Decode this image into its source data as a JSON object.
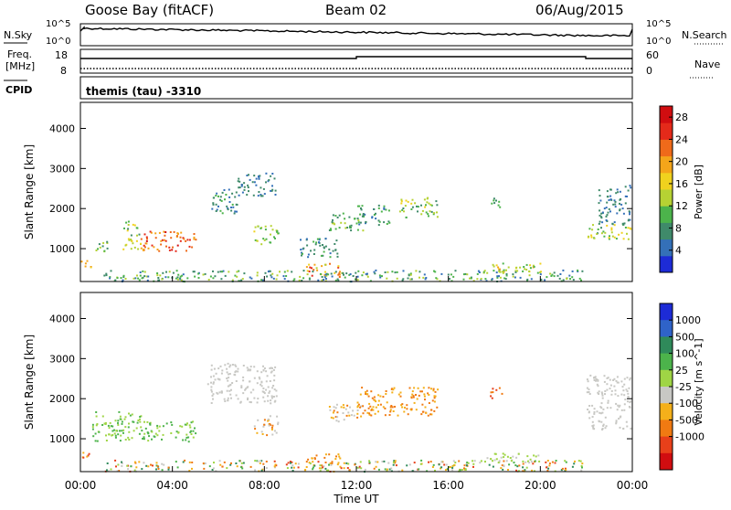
{
  "header": {
    "station": "Goose Bay (fitACF)",
    "beam": "Beam 02",
    "date": "06/Aug/2015"
  },
  "noise_panel": {
    "left_label": "N.Sky",
    "right_label": "N.Search",
    "left_ticks": [
      "10^5",
      "10^0"
    ],
    "right_ticks": [
      "10^5",
      "10^0"
    ]
  },
  "freq_panel": {
    "left_label_line1": "Freq.",
    "left_label_line2": "[MHz]",
    "right_label": "Nave",
    "left_ticks": [
      "18",
      "8"
    ],
    "right_ticks": [
      "60",
      "0"
    ]
  },
  "cpid_panel": {
    "label": "CPID",
    "text": "themis (tau) -3310"
  },
  "chart_data": [
    {
      "type": "scatter",
      "title": "Power",
      "ylabel": "Slant Range [km]",
      "xlabel": "",
      "xlim": [
        0,
        24
      ],
      "ylim": [
        180,
        4650
      ],
      "ytick_values": [
        1000,
        2000,
        3000,
        4000
      ],
      "ytick_labels": [
        "1000",
        "2000",
        "3000",
        "4000"
      ],
      "colorbar": {
        "label": "Power [dB]",
        "ticks": [
          "28",
          "24",
          "20",
          "16",
          "12",
          "8",
          "4"
        ],
        "tick_values": [
          28,
          24,
          20,
          16,
          12,
          8,
          4
        ],
        "range": [
          0,
          30
        ],
        "colors": [
          "#1d2bd6",
          "#3470b8",
          "#3f8a6a",
          "#4cb34b",
          "#b6d233",
          "#f0d21e",
          "#f4a51a",
          "#ef6a1a",
          "#e42a1a",
          "#d10d10"
        ]
      },
      "echo_regions": [
        {
          "t": [
            0.0,
            0.45
          ],
          "r": [
            550,
            800
          ],
          "val": [
            16,
            26
          ]
        },
        {
          "t": [
            0.5,
            1.2
          ],
          "r": [
            950,
            1250
          ],
          "val": [
            6,
            14
          ]
        },
        {
          "t": [
            1.8,
            2.6
          ],
          "r": [
            1000,
            1700
          ],
          "val": [
            8,
            18
          ]
        },
        {
          "t": [
            2.6,
            5.0
          ],
          "r": [
            950,
            1450
          ],
          "val": [
            18,
            28
          ]
        },
        {
          "t": [
            5.5,
            6.8
          ],
          "r": [
            1900,
            2500
          ],
          "val": [
            4,
            10
          ]
        },
        {
          "t": [
            6.8,
            8.5
          ],
          "r": [
            2300,
            2900
          ],
          "val": [
            4,
            9
          ]
        },
        {
          "t": [
            7.5,
            8.6
          ],
          "r": [
            1100,
            1600
          ],
          "val": [
            8,
            16
          ]
        },
        {
          "t": [
            9.5,
            11.2
          ],
          "r": [
            800,
            1300
          ],
          "val": [
            4,
            10
          ]
        },
        {
          "t": [
            10.8,
            12.3
          ],
          "r": [
            1450,
            1900
          ],
          "val": [
            6,
            14
          ]
        },
        {
          "t": [
            9.8,
            11.3
          ],
          "r": [
            300,
            650
          ],
          "val": [
            14,
            26
          ]
        },
        {
          "t": [
            12.0,
            13.5
          ],
          "r": [
            1600,
            2100
          ],
          "val": [
            5,
            12
          ]
        },
        {
          "t": [
            13.8,
            15.5
          ],
          "r": [
            1800,
            2300
          ],
          "val": [
            6,
            16
          ]
        },
        {
          "t": [
            17.8,
            18.3
          ],
          "r": [
            2000,
            2300
          ],
          "val": [
            6,
            12
          ]
        },
        {
          "t": [
            17.5,
            20.0
          ],
          "r": [
            400,
            650
          ],
          "val": [
            10,
            20
          ]
        },
        {
          "t": [
            1.0,
            21.8
          ],
          "r": [
            200,
            480
          ],
          "val": [
            4,
            14
          ]
        },
        {
          "t": [
            22.0,
            23.9
          ],
          "r": [
            1250,
            1650
          ],
          "val": [
            8,
            18
          ]
        },
        {
          "t": [
            22.5,
            23.9
          ],
          "r": [
            1600,
            2600
          ],
          "val": [
            4,
            8
          ]
        }
      ]
    },
    {
      "type": "scatter",
      "title": "Velocity",
      "ylabel": "Slant Range [km]",
      "xlabel": "Time UT",
      "xlim": [
        0,
        24
      ],
      "ylim": [
        180,
        4650
      ],
      "xtick_values": [
        0,
        4,
        8,
        12,
        16,
        20,
        24
      ],
      "xtick_labels": [
        "00:00",
        "04:00",
        "08:00",
        "12:00",
        "16:00",
        "20:00",
        "00:00"
      ],
      "ytick_values": [
        1000,
        2000,
        3000,
        4000
      ],
      "ytick_labels": [
        "1000",
        "2000",
        "3000",
        "4000"
      ],
      "colorbar": {
        "label": "Velocity [m s^-1]",
        "ticks": [
          "1000",
          "500",
          "100",
          "25",
          "-25",
          "-100",
          "-500",
          "-1000"
        ],
        "tick_values": [
          1000,
          500,
          100,
          25,
          -25,
          -100,
          -500,
          -1000
        ],
        "colors": [
          "#1d2bd6",
          "#2f63c8",
          "#2f8a5a",
          "#4cb34b",
          "#9fd545",
          "#c8c8c4",
          "#f4b01a",
          "#f07a12",
          "#e8401a",
          "#d10d10"
        ]
      },
      "echo_regions": [
        {
          "t": [
            0.0,
            0.45
          ],
          "r": [
            550,
            800
          ],
          "band": [
            6,
            8
          ]
        },
        {
          "t": [
            0.5,
            2.6
          ],
          "r": [
            950,
            1700
          ],
          "band": [
            3,
            4
          ]
        },
        {
          "t": [
            2.6,
            5.0
          ],
          "r": [
            950,
            1450
          ],
          "band": [
            3,
            4
          ]
        },
        {
          "t": [
            5.5,
            8.5
          ],
          "r": [
            1900,
            2900
          ],
          "band": [
            5,
            5
          ]
        },
        {
          "t": [
            7.5,
            8.6
          ],
          "r": [
            1100,
            1600
          ],
          "band": [
            5,
            7
          ]
        },
        {
          "t": [
            9.8,
            11.3
          ],
          "r": [
            300,
            650
          ],
          "band": [
            6,
            7
          ]
        },
        {
          "t": [
            10.8,
            12.3
          ],
          "r": [
            1450,
            1900
          ],
          "band": [
            5,
            7
          ]
        },
        {
          "t": [
            12.0,
            15.5
          ],
          "r": [
            1600,
            2300
          ],
          "band": [
            6,
            7
          ]
        },
        {
          "t": [
            17.8,
            18.3
          ],
          "r": [
            2000,
            2300
          ],
          "band": [
            7,
            8
          ]
        },
        {
          "t": [
            17.5,
            20.0
          ],
          "r": [
            400,
            650
          ],
          "band": [
            4,
            5
          ]
        },
        {
          "t": [
            1.0,
            21.8
          ],
          "r": [
            200,
            480
          ],
          "band": [
            2,
            8
          ]
        },
        {
          "t": [
            22.0,
            23.9
          ],
          "r": [
            1250,
            2600
          ],
          "band": [
            5,
            5
          ]
        }
      ]
    }
  ]
}
